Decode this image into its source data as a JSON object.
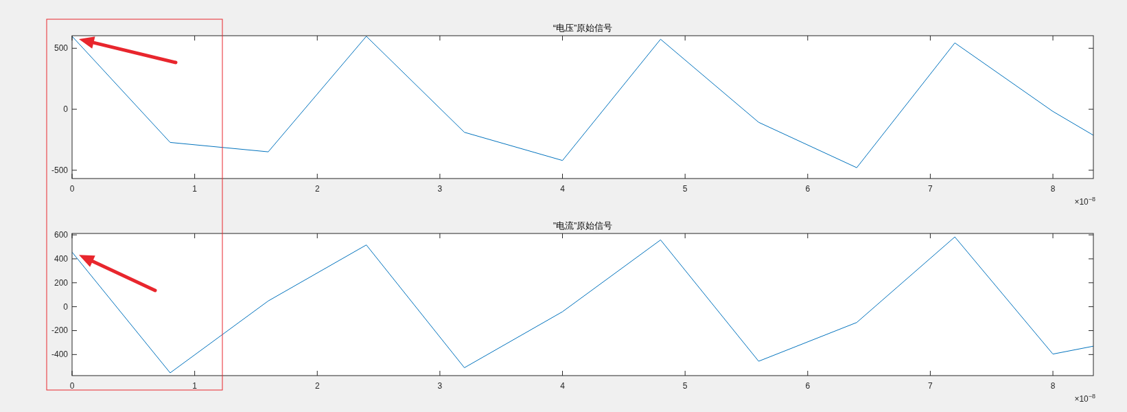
{
  "chart_data": [
    {
      "type": "line",
      "title": "“电压”原始信号",
      "x": [
        0,
        0.8,
        1.6,
        2.4,
        3.2,
        4,
        4.8,
        5.6,
        6.4,
        7.2,
        8,
        8.33
      ],
      "series": [
        {
          "color": "#0072bd",
          "values": [
            598,
            -272,
            -349,
            598,
            -189,
            -420,
            574,
            -107,
            -479,
            544,
            -18,
            -213
          ]
        }
      ],
      "xlim": [
        0,
        8.33
      ],
      "xticks": [
        0,
        1,
        2,
        3,
        4,
        5,
        6,
        7,
        8
      ],
      "ylim": [
        -568,
        603
      ],
      "yticks": [
        -500,
        0,
        500
      ],
      "annotations": [
        "×10$^{−8}$"
      ]
    },
    {
      "type": "line",
      "title": "”电流”原始信号",
      "x": [
        0,
        0.8,
        1.6,
        2.4,
        3.2,
        4,
        4.8,
        5.6,
        6.4,
        7.2,
        8,
        8.33
      ],
      "series": [
        {
          "color": "#0072bd",
          "values": [
            456,
            -553,
            48,
            516,
            -510,
            -42,
            558,
            -456,
            -132,
            583,
            -396,
            -330
          ]
        }
      ],
      "xlim": [
        0,
        8.33
      ],
      "xticks": [
        0,
        1,
        2,
        3,
        4,
        5,
        6,
        7,
        8
      ],
      "ylim": [
        -576,
        612
      ],
      "yticks": [
        -400,
        -200,
        0,
        200,
        400,
        600
      ],
      "annotations": [
        "×10$^{−8}$"
      ]
    }
  ]
}
